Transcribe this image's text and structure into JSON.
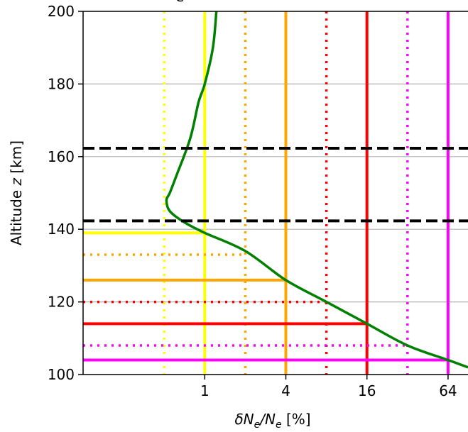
{
  "chart_data": {
    "type": "line",
    "title_fragment": "e",
    "xlabel": "δN",
    "xlabel_sub1": "e",
    "xlabel_mid": "/N",
    "xlabel_sub2": "e",
    "xlabel_unit": " [%]",
    "ylabel": "Altitude",
    "ylabel_var": "z",
    "ylabel_unit": " [km]",
    "x_scale": "log2",
    "xlim": [
      0.125,
      90
    ],
    "ylim": [
      100,
      200
    ],
    "x_ticks": [
      {
        "value": 1,
        "label": "1"
      },
      {
        "value": 4,
        "label": "4"
      },
      {
        "value": 16,
        "label": "16"
      },
      {
        "value": 64,
        "label": "64"
      }
    ],
    "y_ticks": [
      {
        "value": 100,
        "label": "100"
      },
      {
        "value": 120,
        "label": "120"
      },
      {
        "value": 140,
        "label": "140"
      },
      {
        "value": 160,
        "label": "160"
      },
      {
        "value": 180,
        "label": "180"
      },
      {
        "value": 200,
        "label": "200"
      }
    ],
    "grid": "horizontal",
    "profile": {
      "color": "#008000",
      "x": [
        1.22,
        1.15,
        1.0,
        0.9,
        0.78,
        0.62,
        0.55,
        0.52,
        0.55,
        0.7,
        1.0,
        2.0,
        4.0,
        8.0,
        16.0,
        32.0,
        64.0,
        90.0
      ],
      "y": [
        200,
        190,
        180,
        175,
        165,
        155,
        150,
        148,
        145,
        142,
        139,
        134,
        126,
        120,
        114,
        108,
        104,
        102
      ]
    },
    "boundaries": {
      "color": "#000000",
      "style": "dashed",
      "y": [
        142.3,
        162.3
      ]
    },
    "thresholds": [
      {
        "color": "#ffff00",
        "style": "solid",
        "x": 1.0,
        "y": 139
      },
      {
        "color": "#ffff00",
        "style": "dotted",
        "x": 0.5,
        "y": null
      },
      {
        "color": "#ffa500",
        "style": "solid",
        "x": 4.0,
        "y": 126
      },
      {
        "color": "#ffa500",
        "style": "dotted",
        "x": 2.0,
        "y": 133
      },
      {
        "color": "#ff0000",
        "style": "solid",
        "x": 16.0,
        "y": 114
      },
      {
        "color": "#ff0000",
        "style": "dotted",
        "x": 8.0,
        "y": 120
      },
      {
        "color": "#ff00ff",
        "style": "solid",
        "x": 64.0,
        "y": 104
      },
      {
        "color": "#ff00ff",
        "style": "dotted",
        "x": 32.0,
        "y": 108
      }
    ]
  }
}
